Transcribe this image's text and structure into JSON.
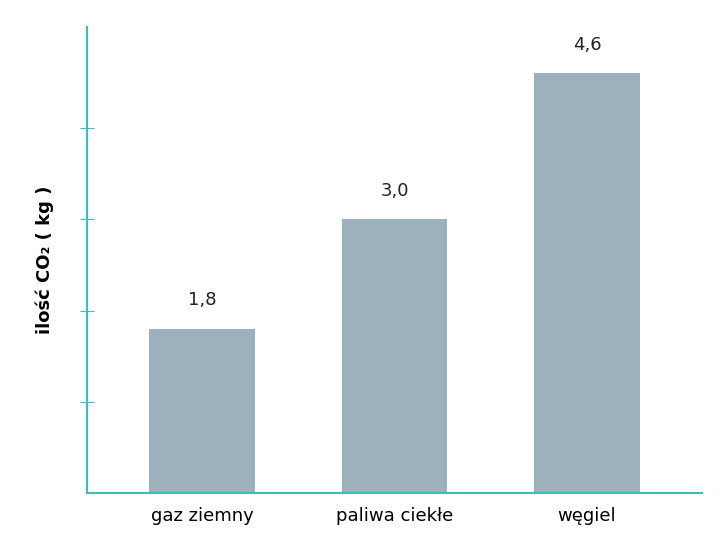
{
  "chart_data": {
    "type": "bar",
    "y_label": "ilość CO₂ ( kg )",
    "categories": [
      "gaz ziemny",
      "paliwa ciekłe",
      "węgiel"
    ],
    "values": [
      1.8,
      3.0,
      4.6
    ],
    "value_labels": [
      "1,8",
      "3,0",
      "4,6"
    ],
    "data_labels": true,
    "color": "#9db1bd",
    "ylim": [
      0,
      5.1
    ],
    "yticks": [
      1,
      2,
      3,
      4
    ],
    "tick_labels": "x",
    "grid": false
  }
}
